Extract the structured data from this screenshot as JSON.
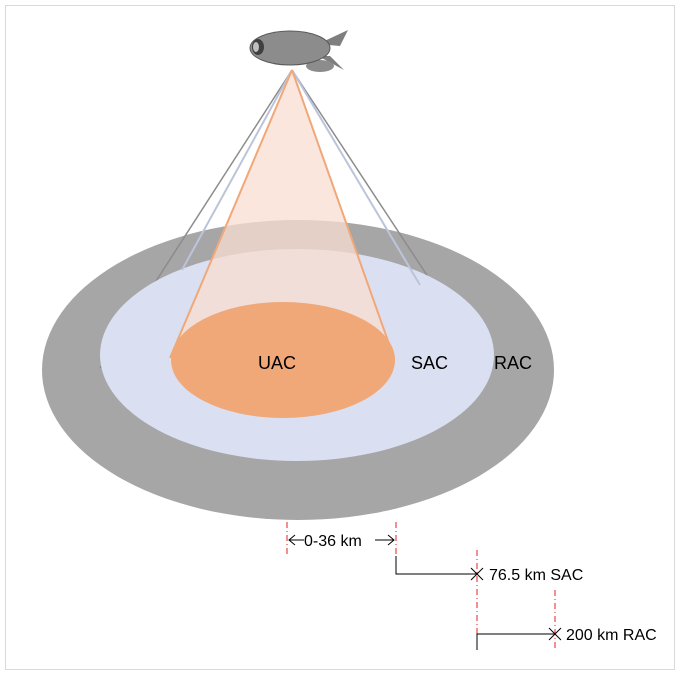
{
  "zones": {
    "uac": "UAC",
    "sac": "SAC",
    "rac": "RAC"
  },
  "annotations": {
    "uac_range": "0-36 km",
    "sac_range": "76.5 km SAC",
    "rac_range": "200 km RAC"
  },
  "colors": {
    "rac_ring": "#a6a6a6",
    "sac_disc": "#dae0f2",
    "uac_disc": "#f0a878",
    "beam_fill": "#f8ddd0",
    "beam_edge": "#f0a878",
    "sac_beam_edge": "#bcc4dc",
    "rac_beam_edge": "#8c8c8c",
    "marker": "#e02020"
  },
  "icons": {
    "platform": "airship-icon"
  }
}
